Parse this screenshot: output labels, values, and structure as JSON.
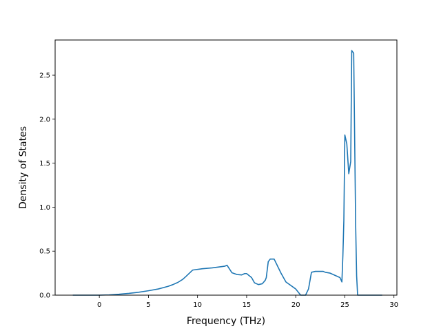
{
  "chart_data": {
    "type": "line",
    "title": "",
    "xlabel": "Frequency (THz)",
    "ylabel": "Density of States",
    "xlim": [
      -4.5,
      30.3
    ],
    "ylim": [
      0,
      2.9
    ],
    "xticks": [
      0,
      5,
      10,
      15,
      20,
      25,
      30
    ],
    "xtick_labels": [
      "0",
      "5",
      "10",
      "15",
      "20",
      "25",
      "30"
    ],
    "yticks": [
      0.0,
      0.5,
      1.0,
      1.5,
      2.0,
      2.5
    ],
    "ytick_labels": [
      "0.0",
      "0.5",
      "1.0",
      "1.5",
      "2.0",
      "2.5"
    ],
    "grid": false,
    "legend": "none",
    "series": [
      {
        "color": "#1f77b4",
        "x": [
          -2.7,
          0.0,
          1.0,
          2.0,
          3.0,
          4.0,
          5.0,
          6.0,
          7.0,
          7.5,
          8.0,
          8.5,
          8.8,
          9.5,
          10.5,
          11.5,
          12.5,
          12.8,
          13.0,
          13.5,
          14.0,
          14.5,
          14.8,
          15.0,
          15.5,
          15.8,
          16.2,
          16.6,
          16.9,
          17.0,
          17.2,
          17.4,
          17.8,
          18.5,
          19.0,
          20.0,
          20.5,
          20.8,
          21.0,
          21.3,
          21.6,
          22.0,
          22.5,
          22.8,
          23.0,
          23.5,
          24.5,
          24.7,
          24.8,
          24.9,
          25.0,
          25.2,
          25.4,
          25.6,
          25.7,
          25.9,
          26.1,
          26.2,
          26.3,
          27.0,
          28.8
        ],
        "y": [
          0.0,
          0.0,
          0.003,
          0.01,
          0.02,
          0.033,
          0.05,
          0.07,
          0.1,
          0.12,
          0.145,
          0.18,
          0.21,
          0.285,
          0.3,
          0.31,
          0.325,
          0.33,
          0.34,
          0.255,
          0.235,
          0.23,
          0.245,
          0.245,
          0.2,
          0.14,
          0.12,
          0.13,
          0.17,
          0.2,
          0.38,
          0.41,
          0.41,
          0.25,
          0.15,
          0.07,
          0.0,
          0.0,
          0.0,
          0.07,
          0.26,
          0.27,
          0.27,
          0.27,
          0.26,
          0.25,
          0.2,
          0.15,
          0.45,
          0.85,
          1.82,
          1.72,
          1.38,
          1.52,
          2.78,
          2.75,
          0.8,
          0.22,
          0.0,
          0.0,
          0.0
        ]
      }
    ]
  }
}
